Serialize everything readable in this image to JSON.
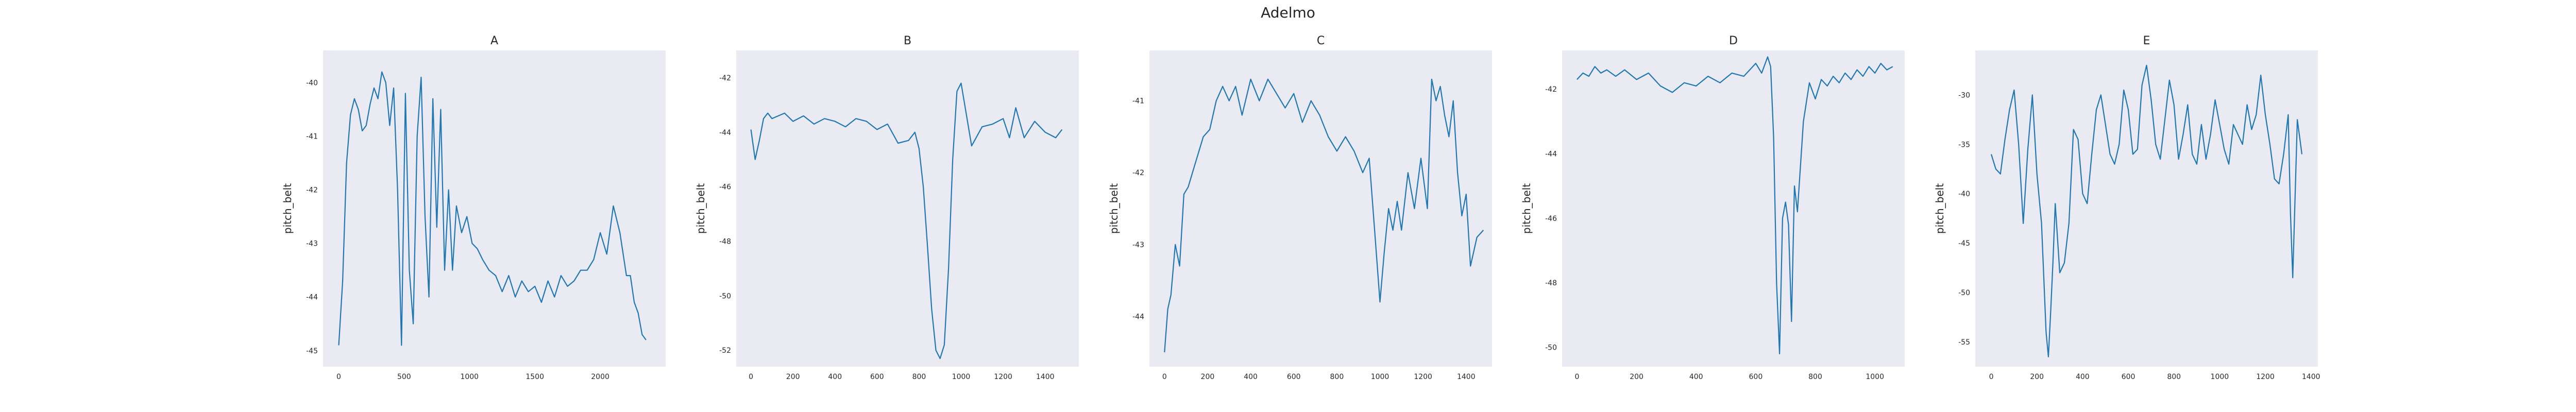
{
  "figure": {
    "suptitle": "Adelmo"
  },
  "chart_data": [
    {
      "type": "line",
      "title": "A",
      "xlabel": "",
      "ylabel": "pitch_belt",
      "xlim": [
        -120,
        2500
      ],
      "ylim": [
        -45.3,
        -39.4
      ],
      "xticks": [
        0,
        500,
        1000,
        1500,
        2000
      ],
      "yticks": [
        -45,
        -44,
        -43,
        -42,
        -41,
        -40
      ],
      "grid": false,
      "color": "#1f77b4",
      "x": [
        0,
        30,
        60,
        90,
        120,
        150,
        180,
        210,
        240,
        270,
        300,
        330,
        360,
        390,
        420,
        450,
        480,
        510,
        540,
        570,
        600,
        630,
        660,
        690,
        720,
        750,
        780,
        810,
        840,
        870,
        900,
        940,
        980,
        1020,
        1060,
        1100,
        1150,
        1200,
        1250,
        1300,
        1350,
        1400,
        1450,
        1500,
        1550,
        1600,
        1650,
        1700,
        1750,
        1800,
        1850,
        1900,
        1950,
        2000,
        2050,
        2100,
        2150,
        2200,
        2230,
        2260,
        2290,
        2320,
        2350
      ],
      "y": [
        -44.9,
        -43.7,
        -41.5,
        -40.6,
        -40.3,
        -40.5,
        -40.9,
        -40.8,
        -40.4,
        -40.1,
        -40.3,
        -39.8,
        -40.0,
        -40.8,
        -40.1,
        -42.0,
        -44.9,
        -40.2,
        -43.5,
        -44.5,
        -41.0,
        -39.9,
        -42.5,
        -44.0,
        -40.3,
        -42.7,
        -40.5,
        -43.5,
        -42.0,
        -43.5,
        -42.3,
        -42.8,
        -42.5,
        -43.0,
        -43.1,
        -43.3,
        -43.5,
        -43.6,
        -43.9,
        -43.6,
        -44.0,
        -43.7,
        -43.9,
        -43.8,
        -44.1,
        -43.7,
        -44.0,
        -43.6,
        -43.8,
        -43.7,
        -43.5,
        -43.5,
        -43.3,
        -42.8,
        -43.2,
        -42.3,
        -42.8,
        -43.6,
        -43.6,
        -44.1,
        -44.3,
        -44.7,
        -44.8
      ]
    },
    {
      "type": "line",
      "title": "B",
      "xlabel": "",
      "ylabel": "pitch_belt",
      "xlim": [
        -70,
        1560
      ],
      "ylim": [
        -52.6,
        -41.0
      ],
      "xticks": [
        0,
        200,
        400,
        600,
        800,
        1000,
        1200,
        1400
      ],
      "yticks": [
        -52,
        -50,
        -48,
        -46,
        -44,
        -42
      ],
      "grid": false,
      "color": "#1f77b4",
      "x": [
        0,
        20,
        40,
        60,
        80,
        100,
        130,
        160,
        200,
        250,
        300,
        350,
        400,
        450,
        500,
        550,
        600,
        650,
        700,
        750,
        780,
        800,
        820,
        840,
        860,
        880,
        900,
        920,
        940,
        960,
        980,
        1000,
        1050,
        1100,
        1150,
        1200,
        1230,
        1260,
        1300,
        1350,
        1400,
        1450,
        1480
      ],
      "y": [
        -43.9,
        -45.0,
        -44.3,
        -43.5,
        -43.3,
        -43.5,
        -43.4,
        -43.3,
        -43.6,
        -43.4,
        -43.7,
        -43.5,
        -43.6,
        -43.8,
        -43.5,
        -43.6,
        -43.9,
        -43.7,
        -44.4,
        -44.3,
        -44.0,
        -44.6,
        -46.0,
        -48.2,
        -50.5,
        -52.0,
        -52.3,
        -51.8,
        -49.0,
        -45.0,
        -42.5,
        -42.2,
        -44.5,
        -43.8,
        -43.7,
        -43.5,
        -44.2,
        -43.1,
        -44.2,
        -43.6,
        -44.0,
        -44.2,
        -43.9
      ]
    },
    {
      "type": "line",
      "title": "C",
      "xlabel": "",
      "ylabel": "pitch_belt",
      "xlim": [
        -70,
        1520
      ],
      "ylim": [
        -44.7,
        -40.3
      ],
      "xticks": [
        0,
        200,
        400,
        600,
        800,
        1000,
        1200,
        1400
      ],
      "yticks": [
        -44,
        -43,
        -42,
        -41
      ],
      "grid": false,
      "color": "#1f77b4",
      "x": [
        0,
        15,
        30,
        50,
        70,
        90,
        110,
        130,
        150,
        180,
        210,
        240,
        270,
        300,
        330,
        360,
        400,
        440,
        480,
        520,
        560,
        600,
        640,
        680,
        720,
        760,
        800,
        840,
        880,
        920,
        950,
        980,
        1000,
        1020,
        1040,
        1060,
        1080,
        1100,
        1130,
        1160,
        1190,
        1220,
        1240,
        1260,
        1280,
        1300,
        1320,
        1340,
        1360,
        1380,
        1400,
        1420,
        1450,
        1480
      ],
      "y": [
        -44.5,
        -43.9,
        -43.7,
        -43.0,
        -43.3,
        -42.3,
        -42.2,
        -42.0,
        -41.8,
        -41.5,
        -41.4,
        -41.0,
        -40.8,
        -41.0,
        -40.8,
        -41.2,
        -40.7,
        -41.0,
        -40.7,
        -40.9,
        -41.1,
        -40.9,
        -41.3,
        -41.0,
        -41.2,
        -41.5,
        -41.7,
        -41.5,
        -41.7,
        -42.0,
        -41.8,
        -43.0,
        -43.8,
        -43.1,
        -42.5,
        -42.8,
        -42.4,
        -42.8,
        -42.0,
        -42.5,
        -41.8,
        -42.5,
        -40.7,
        -41.0,
        -40.8,
        -41.2,
        -41.5,
        -41.0,
        -42.0,
        -42.6,
        -42.3,
        -43.3,
        -42.9,
        -42.8
      ]
    },
    {
      "type": "line",
      "title": "D",
      "xlabel": "",
      "ylabel": "pitch_belt",
      "xlim": [
        -50,
        1100
      ],
      "ylim": [
        -50.6,
        -40.8
      ],
      "xticks": [
        0,
        200,
        400,
        600,
        800,
        1000
      ],
      "yticks": [
        -50,
        -48,
        -46,
        -44,
        -42
      ],
      "grid": false,
      "color": "#1f77b4",
      "x": [
        0,
        20,
        40,
        60,
        80,
        100,
        130,
        160,
        200,
        240,
        280,
        320,
        360,
        400,
        440,
        480,
        520,
        560,
        600,
        620,
        640,
        650,
        660,
        670,
        680,
        690,
        700,
        710,
        720,
        730,
        740,
        760,
        780,
        800,
        820,
        840,
        860,
        880,
        900,
        920,
        940,
        960,
        980,
        1000,
        1020,
        1040,
        1060
      ],
      "y": [
        -41.7,
        -41.5,
        -41.6,
        -41.3,
        -41.5,
        -41.4,
        -41.6,
        -41.4,
        -41.7,
        -41.5,
        -41.9,
        -42.1,
        -41.8,
        -41.9,
        -41.6,
        -41.8,
        -41.5,
        -41.6,
        -41.2,
        -41.5,
        -41.0,
        -41.3,
        -43.5,
        -48.0,
        -50.2,
        -46.0,
        -45.5,
        -46.2,
        -49.2,
        -45.0,
        -45.8,
        -43.0,
        -41.8,
        -42.3,
        -41.7,
        -41.9,
        -41.6,
        -41.8,
        -41.5,
        -41.7,
        -41.4,
        -41.6,
        -41.3,
        -41.5,
        -41.2,
        -41.4,
        -41.3
      ]
    },
    {
      "type": "line",
      "title": "E",
      "xlabel": "",
      "ylabel": "pitch_belt",
      "xlim": [
        -70,
        1430
      ],
      "ylim": [
        -57.5,
        -25.5
      ],
      "xticks": [
        0,
        200,
        400,
        600,
        800,
        1000,
        1200,
        1400
      ],
      "yticks": [
        -55,
        -50,
        -45,
        -40,
        -35,
        -30
      ],
      "grid": false,
      "color": "#1f77b4",
      "x": [
        0,
        20,
        40,
        60,
        80,
        100,
        120,
        140,
        160,
        180,
        200,
        220,
        240,
        250,
        260,
        270,
        280,
        300,
        320,
        340,
        360,
        380,
        400,
        420,
        440,
        460,
        480,
        500,
        520,
        540,
        560,
        580,
        600,
        620,
        640,
        660,
        680,
        700,
        720,
        740,
        760,
        780,
        800,
        820,
        840,
        860,
        880,
        900,
        920,
        940,
        960,
        980,
        1000,
        1020,
        1040,
        1060,
        1080,
        1100,
        1120,
        1140,
        1160,
        1180,
        1200,
        1220,
        1240,
        1260,
        1280,
        1300,
        1310,
        1320,
        1340,
        1360
      ],
      "y": [
        -36.0,
        -37.5,
        -38.0,
        -34.5,
        -31.5,
        -29.5,
        -35.0,
        -43.0,
        -35.5,
        -30.0,
        -38.0,
        -43.0,
        -54.0,
        -56.5,
        -52.0,
        -47.0,
        -41.0,
        -48.0,
        -47.0,
        -43.0,
        -33.5,
        -34.5,
        -40.0,
        -41.0,
        -36.0,
        -31.5,
        -30.0,
        -33.0,
        -36.0,
        -37.0,
        -35.0,
        -29.5,
        -31.5,
        -36.0,
        -35.5,
        -29.0,
        -27.0,
        -30.5,
        -35.0,
        -36.5,
        -32.5,
        -28.5,
        -31.0,
        -36.5,
        -34.0,
        -31.0,
        -36.0,
        -37.0,
        -33.0,
        -36.5,
        -34.0,
        -30.5,
        -33.0,
        -35.5,
        -37.0,
        -33.0,
        -34.0,
        -35.0,
        -31.0,
        -33.5,
        -32.0,
        -28.0,
        -32.0,
        -35.0,
        -38.5,
        -39.0,
        -36.0,
        -32.0,
        -42.0,
        -48.5,
        -32.5,
        -36.0
      ]
    }
  ]
}
